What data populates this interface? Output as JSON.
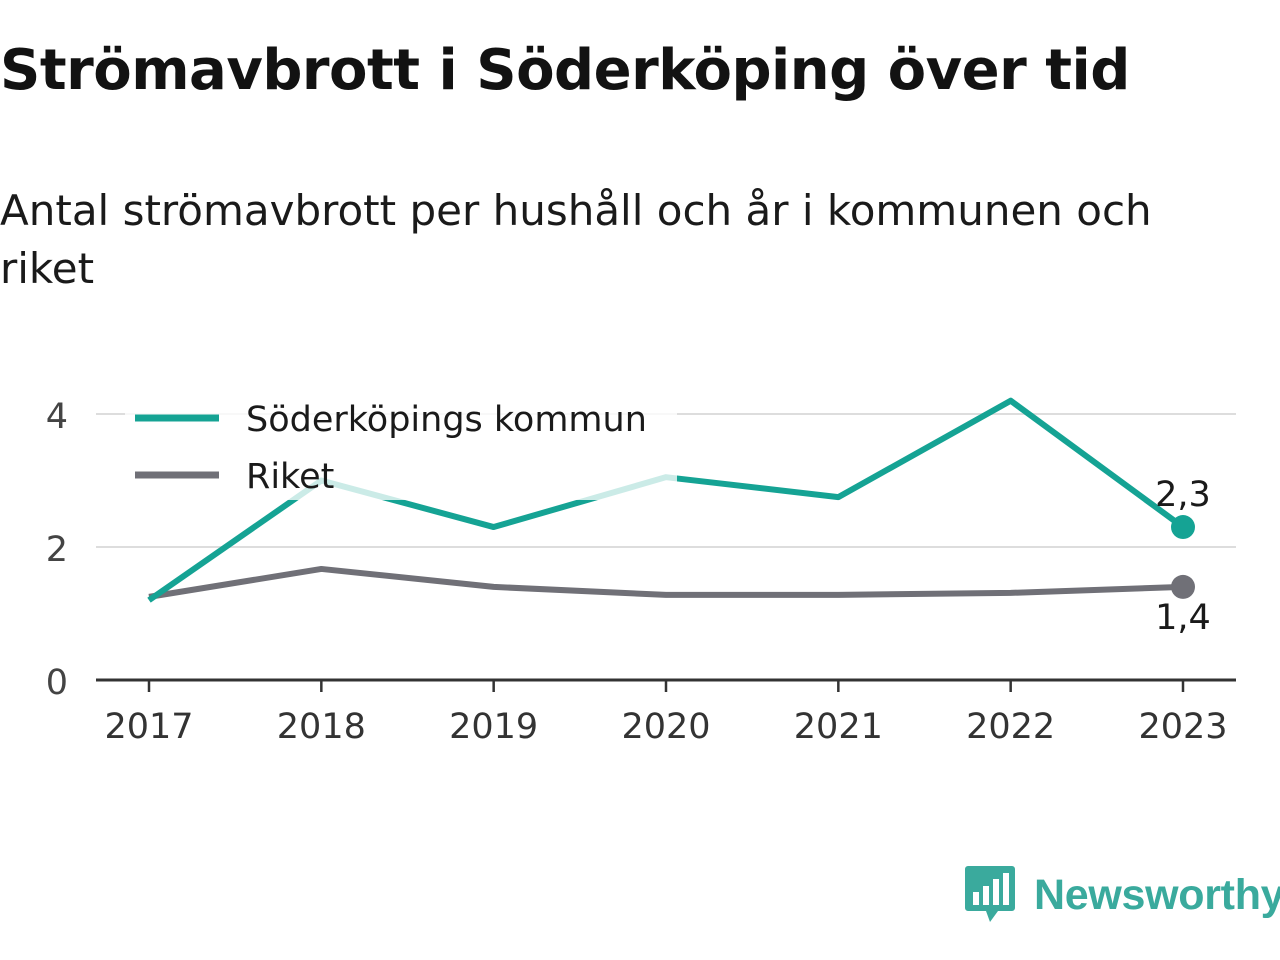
{
  "title": "Strömavbrott i Söderköping över tid",
  "subtitle": "Antal strömavbrott per hushåll och år i kommunen och riket",
  "logo": {
    "text": "Newsworthy",
    "icon": "chart-bubble-icon",
    "color": "#3aaa9d"
  },
  "colors": {
    "soderkoping": "#15a394",
    "riket": "#707077",
    "grid": "#dddddd",
    "axis": "#333333"
  },
  "chart_data": {
    "type": "line",
    "title": "Strömavbrott i Söderköping över tid",
    "subtitle": "Antal strömavbrott per hushåll och år i kommunen och riket",
    "xlabel": "",
    "ylabel": "",
    "categories": [
      "2017",
      "2018",
      "2019",
      "2020",
      "2021",
      "2022",
      "2023"
    ],
    "y_ticks": [
      "0",
      "2",
      "4"
    ],
    "ylim": [
      0,
      4.5
    ],
    "grid": true,
    "legend_position": "top-left",
    "series": [
      {
        "name": "Söderköpings kommun",
        "values": [
          1.2,
          3.0,
          2.3,
          3.05,
          2.75,
          4.2,
          2.3
        ],
        "end_label": "2,3"
      },
      {
        "name": "Riket",
        "values": [
          1.25,
          1.67,
          1.4,
          1.28,
          1.28,
          1.31,
          1.4
        ],
        "end_label": "1,4"
      }
    ]
  }
}
